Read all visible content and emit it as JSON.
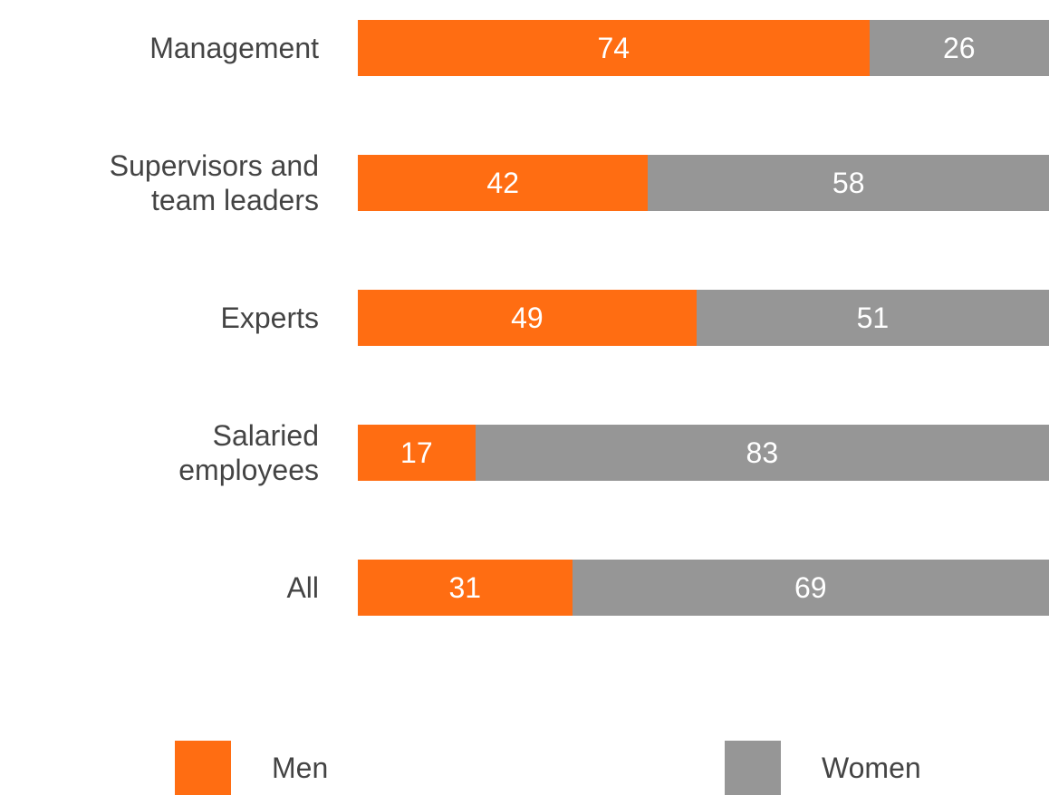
{
  "chart_data": {
    "type": "bar",
    "orientation": "horizontal",
    "stacked": true,
    "categories": [
      "Management",
      "Supervisors and team leaders",
      "Experts",
      "Salaried employees",
      "All"
    ],
    "xlim": [
      0,
      100
    ],
    "series": [
      {
        "name": "Men",
        "color": "#ff6d12",
        "values": [
          74,
          42,
          49,
          17,
          31
        ]
      },
      {
        "name": "Women",
        "color": "#969696",
        "values": [
          26,
          58,
          51,
          83,
          69
        ]
      }
    ]
  }
}
